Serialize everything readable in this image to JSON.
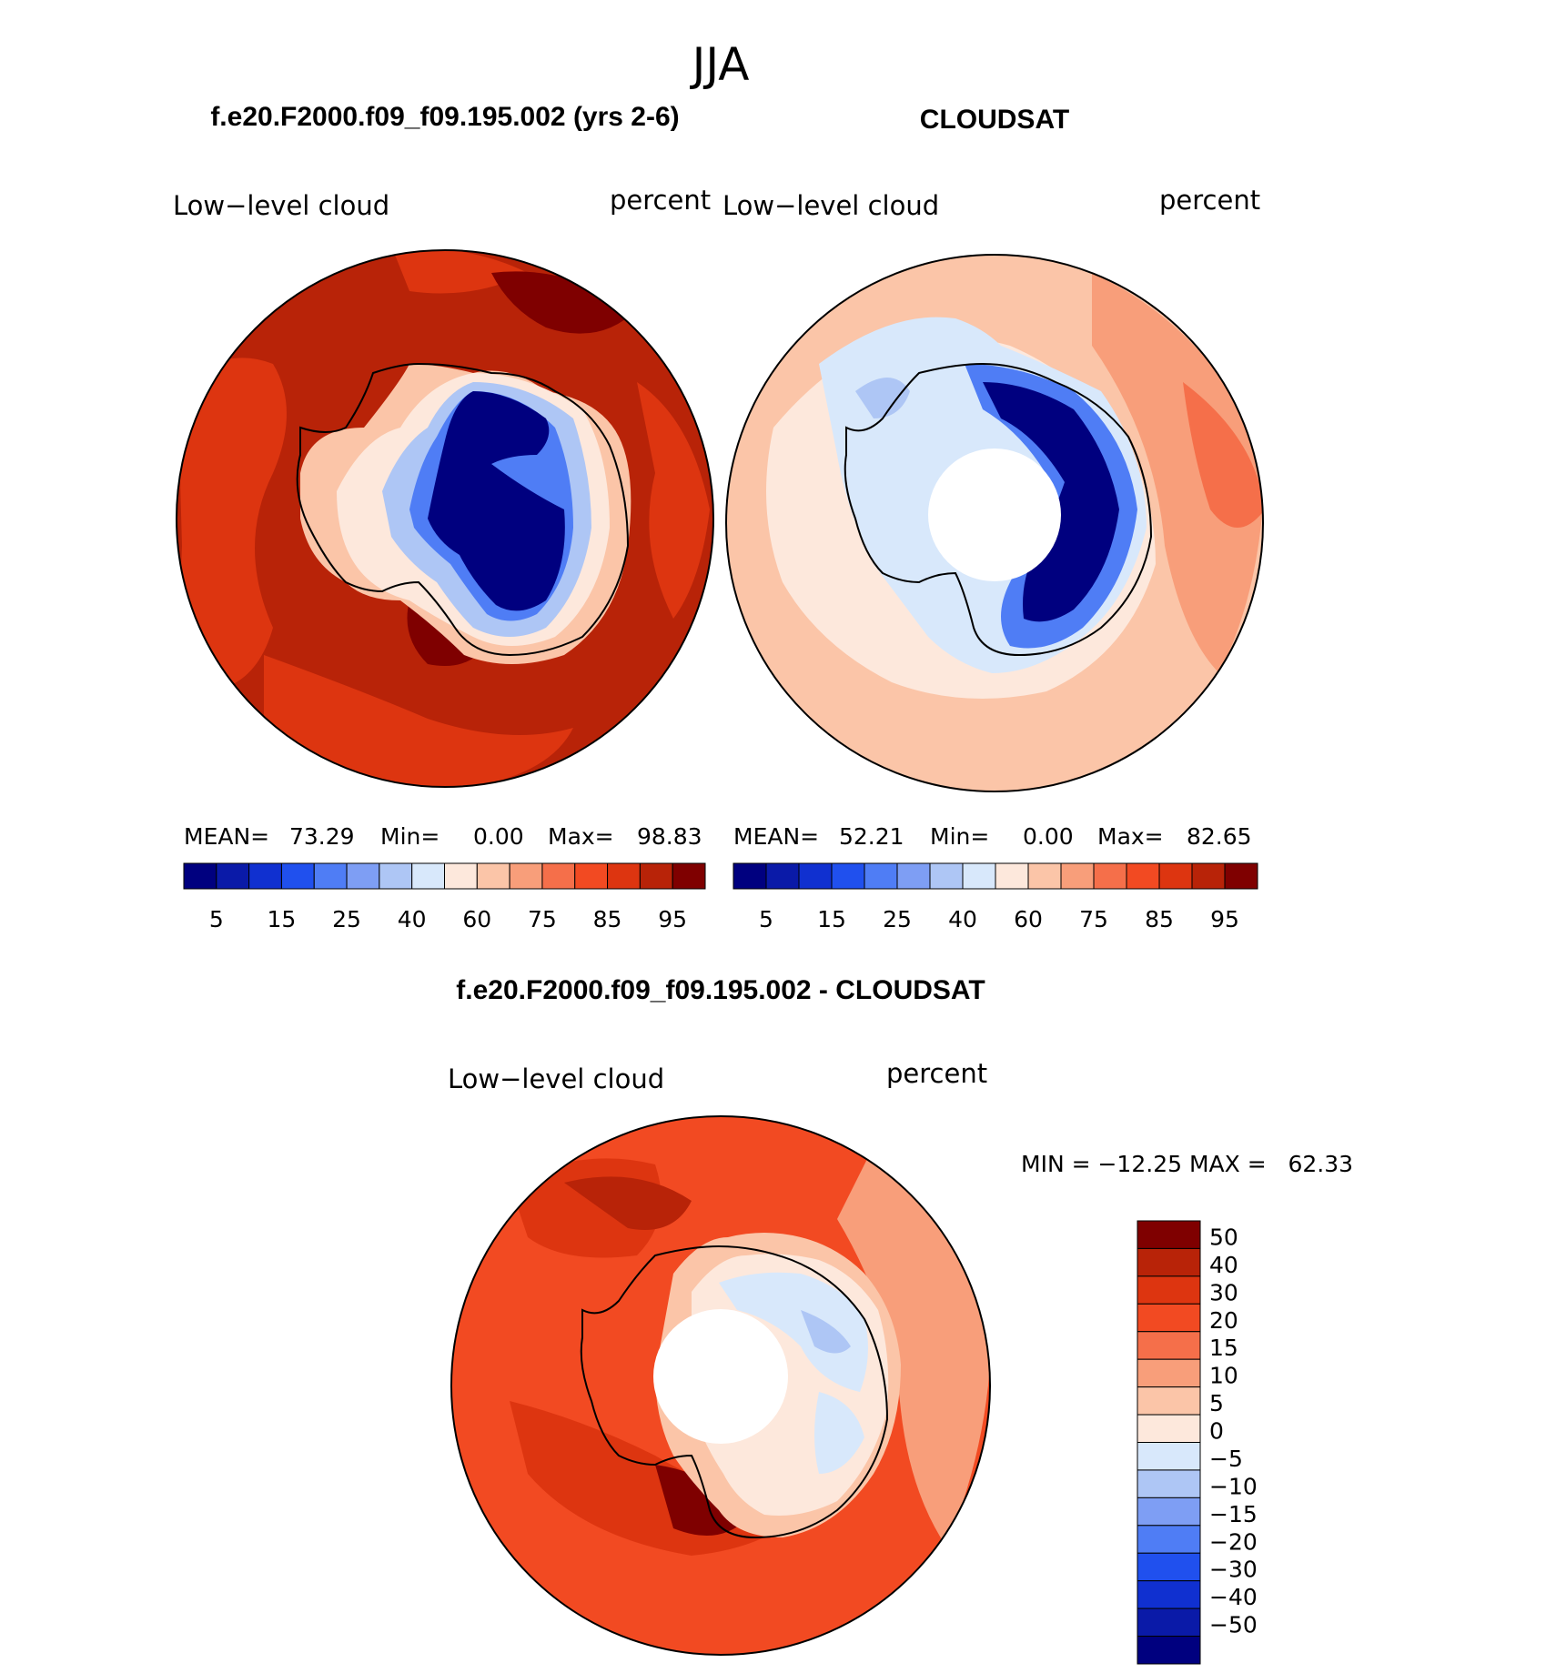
{
  "season": "JJA",
  "panels": {
    "model": {
      "title": "f.e20.F2000.f09_f09.195.002 (yrs 2-6)",
      "field": "Low−level cloud",
      "units": "percent",
      "stats": {
        "mean_label": "MEAN=",
        "mean": "73.29",
        "min_label": "Min=",
        "min": "0.00",
        "max_label": "Max=",
        "max": "98.83"
      }
    },
    "obs": {
      "title": "CLOUDSAT",
      "field": "Low−level cloud",
      "units": "percent",
      "stats": {
        "mean_label": "MEAN=",
        "mean": "52.21",
        "min_label": "Min=",
        "min": "0.00",
        "max_label": "Max=",
        "max": "82.65"
      }
    },
    "diff": {
      "title": "f.e20.F2000.f09_f09.195.002 - CLOUDSAT",
      "field": "Low−level cloud",
      "units": "percent",
      "minmax": "MIN = −12.25 MAX =   62.33"
    }
  },
  "colorbar_abs": {
    "colors": [
      "#00007f",
      "#0a1aa8",
      "#1030d0",
      "#2050ee",
      "#4f7df5",
      "#7e9ef4",
      "#aec6f5",
      "#d8e8fb",
      "#fde8dc",
      "#fbc5a8",
      "#f89e7a",
      "#f56f4a",
      "#f24a22",
      "#dd3510",
      "#b82308",
      "#7f0000"
    ],
    "tick_labels": [
      "5",
      "15",
      "25",
      "40",
      "60",
      "75",
      "85",
      "95"
    ]
  },
  "colorbar_diff": {
    "colors": [
      "#7f0000",
      "#b82308",
      "#dd3510",
      "#f24a22",
      "#f56f4a",
      "#f89e7a",
      "#fbc5a8",
      "#fde8dc",
      "#d8e8fb",
      "#aec6f5",
      "#7e9ef4",
      "#4f7df5",
      "#2050ee",
      "#1030d0",
      "#0a1aa8",
      "#00007f"
    ],
    "tick_labels": [
      "50",
      "40",
      "30",
      "20",
      "15",
      "10",
      "5",
      "0",
      "−5",
      "−10",
      "−15",
      "−20",
      "−30",
      "−40",
      "−50"
    ]
  }
}
